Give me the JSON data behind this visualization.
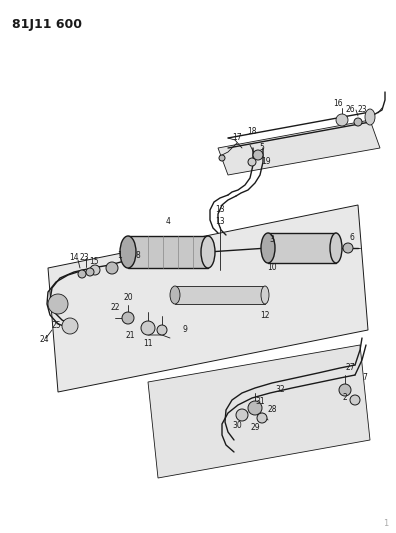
{
  "title": "81J11 600",
  "bg_color": "#ffffff",
  "line_color": "#1a1a1a",
  "page_num": "1",
  "fig_width": 3.96,
  "fig_height": 5.33,
  "dpi": 100,
  "title_fontsize": 9,
  "label_fontsize": 5.5
}
